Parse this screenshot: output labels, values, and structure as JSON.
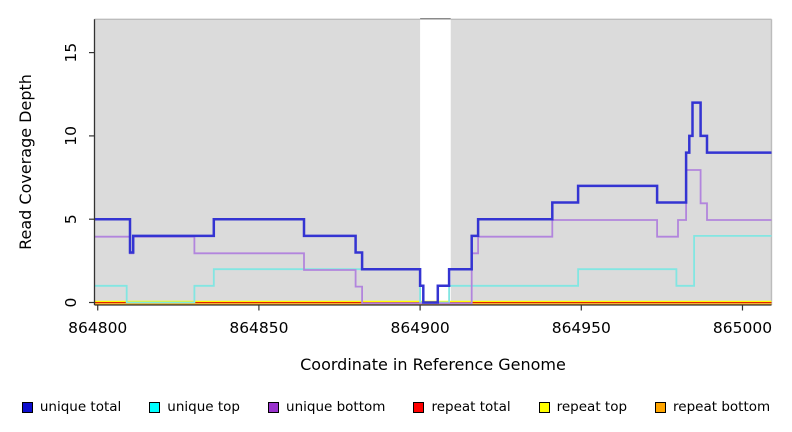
{
  "chart_data": {
    "type": "line",
    "subtype": "step",
    "title": "",
    "xlabel": "Coordinate in Reference Genome",
    "ylabel": "Read Coverage Depth",
    "x_domain": [
      864799,
      865009
    ],
    "y_domain": [
      0,
      17
    ],
    "x_ticks": [
      864800,
      864850,
      864900,
      864950,
      865000
    ],
    "y_ticks": [
      0,
      5,
      10,
      15
    ],
    "grid": false,
    "legend_position": "bottom",
    "panel_bg": "#dbdbdb",
    "border_light": "#bcbcbc",
    "axis_dark": "#333333",
    "masked_region": {
      "x0": 864900,
      "x1": 864909.5,
      "color": "#ffffff",
      "cap_color": "#8a8a8a"
    },
    "series": [
      {
        "name": "repeat total",
        "color": "#dd0000",
        "line_width": 1,
        "steps": [
          [
            864799,
            0
          ]
        ]
      },
      {
        "name": "repeat top",
        "color": "#ffff00",
        "line_width": 1.4,
        "steps": [
          [
            864799,
            0
          ]
        ]
      },
      {
        "name": "repeat bottom",
        "color": "#ffa500",
        "line_width": 1.8,
        "steps": [
          [
            864799,
            0
          ]
        ]
      },
      {
        "name": "unique top",
        "color": "#82e6e2",
        "line_width": 1.8,
        "steps": [
          [
            864799,
            1
          ],
          [
            864809,
            0
          ],
          [
            864830,
            1
          ],
          [
            864836,
            2
          ],
          [
            864900,
            0
          ],
          [
            864909,
            1
          ],
          [
            864949,
            2
          ],
          [
            864979.5,
            1
          ],
          [
            864985,
            4
          ]
        ]
      },
      {
        "name": "unique bottom",
        "color": "#b285dd",
        "line_width": 1.8,
        "steps": [
          [
            864799,
            4
          ],
          [
            864810,
            3
          ],
          [
            864811,
            4
          ],
          [
            864830,
            3
          ],
          [
            864864,
            2
          ],
          [
            864880,
            1
          ],
          [
            864882,
            0
          ],
          [
            864916,
            3
          ],
          [
            864918,
            4
          ],
          [
            864941,
            5
          ],
          [
            864973.5,
            4
          ],
          [
            864980,
            5
          ],
          [
            864982.5,
            8
          ],
          [
            864987,
            6
          ],
          [
            864989,
            5
          ]
        ]
      },
      {
        "name": "unique total",
        "color": "#3434d2",
        "line_width": 2.5,
        "steps": [
          [
            864799,
            5
          ],
          [
            864810,
            3
          ],
          [
            864811,
            4
          ],
          [
            864836,
            5
          ],
          [
            864864,
            4
          ],
          [
            864880,
            3
          ],
          [
            864882,
            2
          ],
          [
            864900,
            1
          ],
          [
            864901,
            0
          ],
          [
            864905.5,
            1
          ],
          [
            864909,
            2
          ],
          [
            864916,
            4
          ],
          [
            864918,
            5
          ],
          [
            864941,
            6
          ],
          [
            864949,
            7
          ],
          [
            864973.5,
            6
          ],
          [
            864982.5,
            9
          ],
          [
            864983.5,
            10
          ],
          [
            864984.5,
            12
          ],
          [
            864987,
            10
          ],
          [
            864989,
            9
          ]
        ]
      }
    ]
  },
  "legend": {
    "items": [
      {
        "label": "unique total",
        "color": "#0d0dcd"
      },
      {
        "label": "unique top",
        "color": "#00ffff"
      },
      {
        "label": "unique bottom",
        "color": "#9932cc"
      },
      {
        "label": "repeat total",
        "color": "#ff0000"
      },
      {
        "label": "repeat top",
        "color": "#ffff00"
      },
      {
        "label": "repeat bottom",
        "color": "#ffa500"
      }
    ]
  }
}
